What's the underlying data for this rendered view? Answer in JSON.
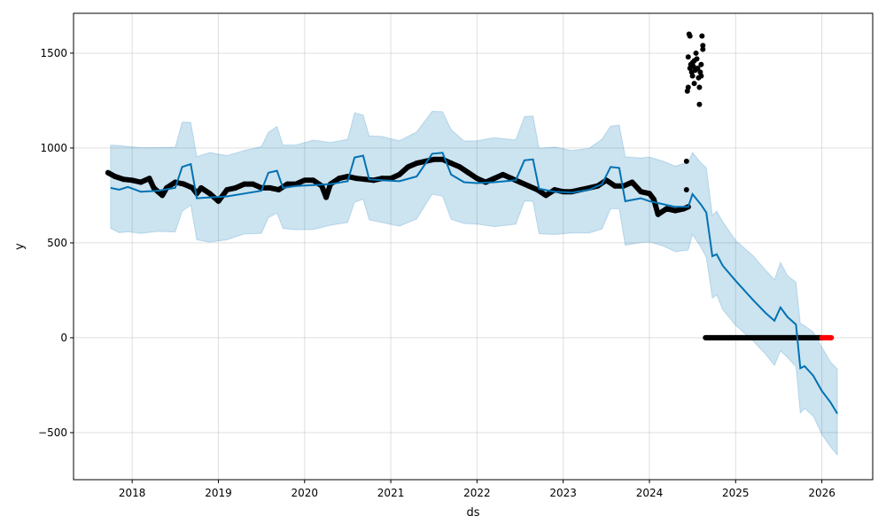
{
  "chart_data": {
    "type": "line",
    "title": "",
    "xlabel": "ds",
    "ylabel": "y",
    "xlim": [
      2017.32,
      2026.59
    ],
    "ylim": [
      -748,
      1710
    ],
    "grid": true,
    "x_ticks": [
      {
        "v": 2018,
        "label": "2018"
      },
      {
        "v": 2019,
        "label": "2019"
      },
      {
        "v": 2020,
        "label": "2020"
      },
      {
        "v": 2021,
        "label": "2021"
      },
      {
        "v": 2022,
        "label": "2022"
      },
      {
        "v": 2023,
        "label": "2023"
      },
      {
        "v": 2024,
        "label": "2024"
      },
      {
        "v": 2025,
        "label": "2025"
      },
      {
        "v": 2026,
        "label": "2026"
      }
    ],
    "y_ticks": [
      {
        "v": -500,
        "label": "−500"
      },
      {
        "v": 0,
        "label": "0"
      },
      {
        "v": 500,
        "label": "500"
      },
      {
        "v": 1000,
        "label": "1000"
      },
      {
        "v": 1500,
        "label": "1500"
      }
    ],
    "colors": {
      "forecast": "#0072B2",
      "band": "#0072B2",
      "observed": "#000000",
      "highlight": "#ff0000"
    },
    "forecast": [
      [
        2017.75,
        790
      ],
      [
        2017.85,
        780
      ],
      [
        2017.95,
        795
      ],
      [
        2018.1,
        770
      ],
      [
        2018.3,
        775
      ],
      [
        2018.5,
        790
      ],
      [
        2018.58,
        900
      ],
      [
        2018.68,
        915
      ],
      [
        2018.75,
        735
      ],
      [
        2018.9,
        740
      ],
      [
        2019.1,
        745
      ],
      [
        2019.3,
        760
      ],
      [
        2019.5,
        775
      ],
      [
        2019.58,
        870
      ],
      [
        2019.68,
        880
      ],
      [
        2019.75,
        790
      ],
      [
        2019.9,
        800
      ],
      [
        2020.1,
        805
      ],
      [
        2020.3,
        810
      ],
      [
        2020.5,
        825
      ],
      [
        2020.58,
        950
      ],
      [
        2020.68,
        960
      ],
      [
        2020.75,
        835
      ],
      [
        2020.9,
        830
      ],
      [
        2021.1,
        825
      ],
      [
        2021.3,
        850
      ],
      [
        2021.48,
        970
      ],
      [
        2021.6,
        975
      ],
      [
        2021.7,
        860
      ],
      [
        2021.85,
        820
      ],
      [
        2022.0,
        815
      ],
      [
        2022.2,
        820
      ],
      [
        2022.45,
        830
      ],
      [
        2022.55,
        935
      ],
      [
        2022.65,
        940
      ],
      [
        2022.72,
        785
      ],
      [
        2022.9,
        770
      ],
      [
        2023.1,
        765
      ],
      [
        2023.3,
        780
      ],
      [
        2023.45,
        810
      ],
      [
        2023.55,
        900
      ],
      [
        2023.65,
        895
      ],
      [
        2023.72,
        720
      ],
      [
        2023.9,
        735
      ],
      [
        2024.0,
        720
      ],
      [
        2024.15,
        705
      ],
      [
        2024.3,
        690
      ],
      [
        2024.45,
        690
      ],
      [
        2024.5,
        757
      ],
      [
        2024.6,
        700
      ],
      [
        2024.66,
        660
      ],
      [
        2024.73,
        430
      ],
      [
        2024.78,
        440
      ],
      [
        2024.85,
        380
      ],
      [
        2025.0,
        300
      ],
      [
        2025.2,
        200
      ],
      [
        2025.35,
        130
      ],
      [
        2025.45,
        90
      ],
      [
        2025.52,
        160
      ],
      [
        2025.6,
        110
      ],
      [
        2025.7,
        70
      ],
      [
        2025.75,
        -160
      ],
      [
        2025.8,
        -150
      ],
      [
        2025.9,
        -200
      ],
      [
        2026.0,
        -280
      ],
      [
        2026.1,
        -340
      ],
      [
        2026.18,
        -400
      ]
    ],
    "band_halfwidth": 225,
    "observed": [
      [
        2017.72,
        870
      ],
      [
        2017.8,
        850
      ],
      [
        2017.9,
        835
      ],
      [
        2018.0,
        830
      ],
      [
        2018.1,
        820
      ],
      [
        2018.2,
        840
      ],
      [
        2018.25,
        790
      ],
      [
        2018.3,
        770
      ],
      [
        2018.35,
        750
      ],
      [
        2018.4,
        790
      ],
      [
        2018.5,
        820
      ],
      [
        2018.6,
        810
      ],
      [
        2018.7,
        790
      ],
      [
        2018.75,
        760
      ],
      [
        2018.8,
        790
      ],
      [
        2018.9,
        760
      ],
      [
        2019.0,
        720
      ],
      [
        2019.1,
        780
      ],
      [
        2019.2,
        790
      ],
      [
        2019.3,
        810
      ],
      [
        2019.4,
        810
      ],
      [
        2019.5,
        790
      ],
      [
        2019.6,
        790
      ],
      [
        2019.7,
        780
      ],
      [
        2019.8,
        810
      ],
      [
        2019.9,
        810
      ],
      [
        2020.0,
        830
      ],
      [
        2020.1,
        830
      ],
      [
        2020.2,
        800
      ],
      [
        2020.25,
        740
      ],
      [
        2020.3,
        810
      ],
      [
        2020.4,
        840
      ],
      [
        2020.5,
        850
      ],
      [
        2020.6,
        840
      ],
      [
        2020.7,
        835
      ],
      [
        2020.8,
        830
      ],
      [
        2020.9,
        840
      ],
      [
        2021.0,
        840
      ],
      [
        2021.1,
        860
      ],
      [
        2021.2,
        900
      ],
      [
        2021.3,
        920
      ],
      [
        2021.4,
        930
      ],
      [
        2021.5,
        940
      ],
      [
        2021.6,
        940
      ],
      [
        2021.7,
        920
      ],
      [
        2021.8,
        900
      ],
      [
        2021.9,
        870
      ],
      [
        2022.0,
        840
      ],
      [
        2022.1,
        820
      ],
      [
        2022.2,
        840
      ],
      [
        2022.3,
        860
      ],
      [
        2022.4,
        840
      ],
      [
        2022.5,
        820
      ],
      [
        2022.6,
        800
      ],
      [
        2022.7,
        780
      ],
      [
        2022.8,
        750
      ],
      [
        2022.9,
        780
      ],
      [
        2023.0,
        770
      ],
      [
        2023.1,
        770
      ],
      [
        2023.2,
        780
      ],
      [
        2023.3,
        790
      ],
      [
        2023.4,
        800
      ],
      [
        2023.5,
        830
      ],
      [
        2023.6,
        800
      ],
      [
        2023.7,
        800
      ],
      [
        2023.8,
        820
      ],
      [
        2023.9,
        770
      ],
      [
        2024.0,
        760
      ],
      [
        2024.05,
        730
      ],
      [
        2024.1,
        650
      ],
      [
        2024.2,
        680
      ],
      [
        2024.3,
        670
      ],
      [
        2024.4,
        680
      ],
      [
        2024.45,
        690
      ]
    ],
    "outliers": [
      [
        2024.43,
        930
      ],
      [
        2024.43,
        780
      ],
      [
        2024.44,
        1300
      ],
      [
        2024.45,
        1320
      ],
      [
        2024.45,
        1480
      ],
      [
        2024.46,
        1600
      ],
      [
        2024.47,
        1590
      ],
      [
        2024.47,
        1420
      ],
      [
        2024.48,
        1440
      ],
      [
        2024.49,
        1400
      ],
      [
        2024.5,
        1450
      ],
      [
        2024.5,
        1380
      ],
      [
        2024.51,
        1430
      ],
      [
        2024.52,
        1460
      ],
      [
        2024.52,
        1340
      ],
      [
        2024.53,
        1410
      ],
      [
        2024.54,
        1500
      ],
      [
        2024.55,
        1470
      ],
      [
        2024.56,
        1420
      ],
      [
        2024.57,
        1370
      ],
      [
        2024.58,
        1320
      ],
      [
        2024.58,
        1230
      ],
      [
        2024.59,
        1400
      ],
      [
        2024.6,
        1380
      ],
      [
        2024.61,
        1590
      ],
      [
        2024.62,
        1520
      ],
      [
        2024.62,
        1540
      ],
      [
        2024.6,
        1440
      ]
    ],
    "zero_observations": {
      "start": 2024.65,
      "end": 2026.0,
      "value": 0
    },
    "highlighted_observations": {
      "start": 2026.0,
      "end": 2026.11,
      "value": 0
    }
  }
}
